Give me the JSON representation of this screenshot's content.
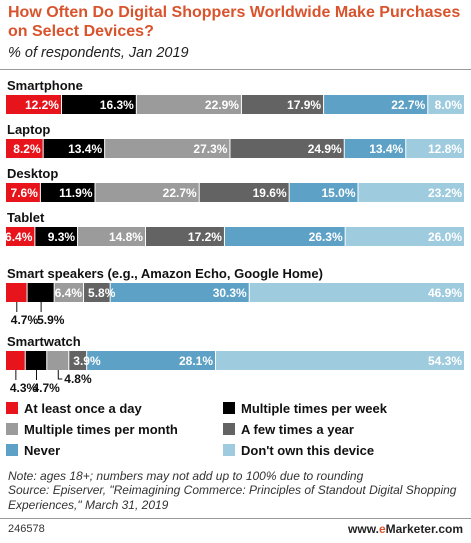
{
  "header": {
    "title": "How Often Do Digital Shoppers Worldwide Make Purchases on Select Devices?",
    "subtitle": "% of respondents, Jan 2019"
  },
  "chart_data": {
    "type": "bar",
    "orientation": "horizontal",
    "stacked": true,
    "title": "How Often Do Digital Shoppers Worldwide Make Purchases on Select Devices?",
    "subtitle": "% of respondents, Jan 2019",
    "categories": [
      "Smartphone",
      "Laptop",
      "Desktop",
      "Tablet",
      "Smart speakers (e.g., Amazon Echo, Google Home)",
      "Smartwatch"
    ],
    "series": [
      {
        "name": "At least once a day",
        "color": "#E8141C",
        "values": [
          12.2,
          8.2,
          7.6,
          6.4,
          4.7,
          4.3
        ],
        "labels": [
          "12.2%",
          "8.2%",
          "7.6%",
          "6.4%",
          "4.7%",
          "4.3%"
        ]
      },
      {
        "name": "Multiple times per week",
        "color": "#000000",
        "values": [
          16.3,
          13.4,
          11.9,
          9.3,
          5.9,
          4.7
        ],
        "labels": [
          "16.3%",
          "13.4%",
          "11.9%",
          "9.3%",
          "5.9%",
          "4.7%"
        ]
      },
      {
        "name": "Multiple times per month",
        "color": "#9B9B9B",
        "values": [
          22.9,
          27.3,
          22.7,
          14.8,
          6.4,
          4.8
        ],
        "labels": [
          "22.9%",
          "27.3%",
          "22.7%",
          "14.8%",
          "6.4%",
          "4.8%"
        ]
      },
      {
        "name": "A few times a year",
        "color": "#636363",
        "values": [
          17.9,
          24.9,
          19.6,
          17.2,
          5.8,
          3.9
        ],
        "labels": [
          "17.9%",
          "24.9%",
          "19.6%",
          "17.2%",
          "5.8%",
          "3.9%"
        ]
      },
      {
        "name": "Never",
        "color": "#5EA1C6",
        "values": [
          22.7,
          13.4,
          15.0,
          26.3,
          30.3,
          28.1
        ],
        "labels": [
          "22.7%",
          "13.4%",
          "15.0%",
          "26.3%",
          "30.3%",
          "28.1%"
        ]
      },
      {
        "name": "Don't own this device",
        "color": "#9FCBDE",
        "values": [
          8.0,
          12.8,
          23.2,
          26.0,
          46.9,
          54.3
        ],
        "labels": [
          "8.0%",
          "12.8%",
          "23.2%",
          "26.0%",
          "46.9%",
          "54.3%"
        ]
      }
    ],
    "legend_position": "bottom",
    "grid": false
  },
  "footer": {
    "note": "Note: ages 18+; numbers may not add up to 100% due to rounding",
    "source": "Source: Episerver, \"Reimagining Commerce: Principles of Standout Digital Shopping Experiences,\" March 31, 2019",
    "chart_id": "246578",
    "brand_prefix": "www.",
    "brand_e": "e",
    "brand_suffix": "Marketer.com"
  }
}
